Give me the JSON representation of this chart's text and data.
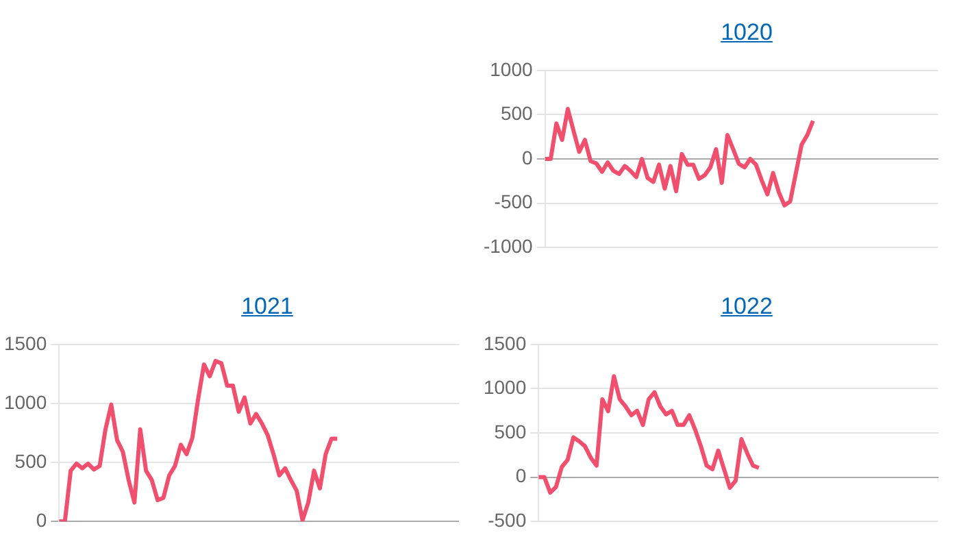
{
  "chart_data": [
    {
      "type": "line",
      "title": "1020",
      "categories": [
        null,
        null,
        null,
        null,
        null,
        null,
        null,
        null,
        null,
        null,
        null,
        null,
        null,
        null,
        null,
        null,
        null,
        null,
        null,
        null,
        null,
        null,
        null,
        null,
        null,
        null,
        null,
        null,
        null,
        null,
        null,
        null,
        null,
        null,
        null,
        null,
        null,
        null,
        null,
        null,
        null,
        null,
        null,
        null,
        null,
        null,
        null,
        null,
        null,
        null,
        null,
        null,
        null,
        null,
        null,
        null,
        null,
        null,
        null,
        null,
        null,
        null,
        null,
        null,
        null,
        null,
        null,
        null,
        null,
        null
      ],
      "series": [
        {
          "color": "#f0506e",
          "values": [
            0,
            0,
            400,
            215,
            565,
            320,
            80,
            215,
            -25,
            -50,
            -145,
            -40,
            -135,
            -170,
            -80,
            -135,
            -205,
            0,
            -215,
            -260,
            -65,
            -335,
            -80,
            -365,
            55,
            -65,
            -65,
            -225,
            -185,
            -95,
            110,
            -270,
            270,
            110,
            -55,
            -95,
            0,
            -65,
            -240,
            -400,
            -160,
            -375,
            -525,
            -480,
            -160,
            160,
            270,
            430,
            null,
            null,
            null,
            null,
            null,
            null,
            null,
            null,
            null,
            null,
            null,
            null,
            null,
            null,
            null,
            null,
            null,
            null,
            null,
            null,
            null,
            null
          ]
        }
      ],
      "ylim": [
        -1000,
        1000
      ],
      "yticks": [
        -1000,
        -500,
        0,
        500,
        1000
      ],
      "grid": "y",
      "tick_labels": "y",
      "legend": false
    },
    {
      "type": "line",
      "title": "1021",
      "categories": [
        null,
        null,
        null,
        null,
        null,
        null,
        null,
        null,
        null,
        null,
        null,
        null,
        null,
        null,
        null,
        null,
        null,
        null,
        null,
        null,
        null,
        null,
        null,
        null,
        null,
        null,
        null,
        null,
        null,
        null,
        null,
        null,
        null,
        null,
        null,
        null,
        null,
        null,
        null,
        null,
        null,
        null,
        null,
        null,
        null,
        null,
        null,
        null,
        null,
        null,
        null,
        null,
        null,
        null,
        null,
        null,
        null,
        null,
        null,
        null,
        null,
        null,
        null,
        null,
        null,
        null,
        null,
        null,
        null,
        null
      ],
      "series": [
        {
          "color": "#f0506e",
          "values": [
            0,
            0,
            430,
            490,
            450,
            490,
            440,
            470,
            780,
            990,
            690,
            590,
            350,
            160,
            780,
            430,
            350,
            180,
            200,
            390,
            470,
            650,
            570,
            710,
            1040,
            1330,
            1230,
            1360,
            1340,
            1150,
            1150,
            930,
            1050,
            830,
            910,
            830,
            730,
            570,
            390,
            450,
            350,
            260,
            10,
            160,
            430,
            280,
            570,
            700,
            700,
            null,
            null,
            null,
            null,
            null,
            null,
            null,
            null,
            null,
            null,
            null,
            null,
            null,
            null,
            null,
            null,
            null,
            null,
            null,
            null,
            null
          ]
        }
      ],
      "ylim": [
        0,
        1500
      ],
      "yticks": [
        0,
        500,
        1000,
        1500
      ],
      "grid": "y",
      "tick_labels": "y",
      "legend": false
    },
    {
      "type": "line",
      "title": "1022",
      "categories": [
        null,
        null,
        null,
        null,
        null,
        null,
        null,
        null,
        null,
        null,
        null,
        null,
        null,
        null,
        null,
        null,
        null,
        null,
        null,
        null,
        null,
        null,
        null,
        null,
        null,
        null,
        null,
        null,
        null,
        null,
        null,
        null,
        null,
        null,
        null,
        null,
        null,
        null,
        null,
        null,
        null,
        null,
        null,
        null,
        null,
        null,
        null,
        null,
        null,
        null,
        null,
        null,
        null,
        null,
        null,
        null,
        null,
        null,
        null,
        null,
        null,
        null,
        null,
        null,
        null,
        null,
        null,
        null,
        null,
        null
      ],
      "series": [
        {
          "color": "#f0506e",
          "values": [
            0,
            0,
            -175,
            -110,
            115,
            195,
            450,
            405,
            350,
            220,
            130,
            880,
            745,
            1140,
            880,
            800,
            700,
            750,
            590,
            880,
            960,
            800,
            710,
            750,
            590,
            590,
            700,
            540,
            350,
            130,
            90,
            300,
            90,
            -120,
            -40,
            430,
            270,
            130,
            105,
            null,
            null,
            null,
            null,
            null,
            null,
            null,
            null,
            null,
            null,
            null,
            null,
            null,
            null,
            null,
            null,
            null,
            null,
            null,
            null,
            null,
            null,
            null,
            null,
            null,
            null,
            null,
            null,
            null,
            null,
            null
          ]
        }
      ],
      "ylim": [
        -500,
        1500
      ],
      "yticks": [
        -500,
        0,
        500,
        1000,
        1500
      ],
      "grid": "y",
      "tick_labels": "y",
      "legend": false
    }
  ]
}
